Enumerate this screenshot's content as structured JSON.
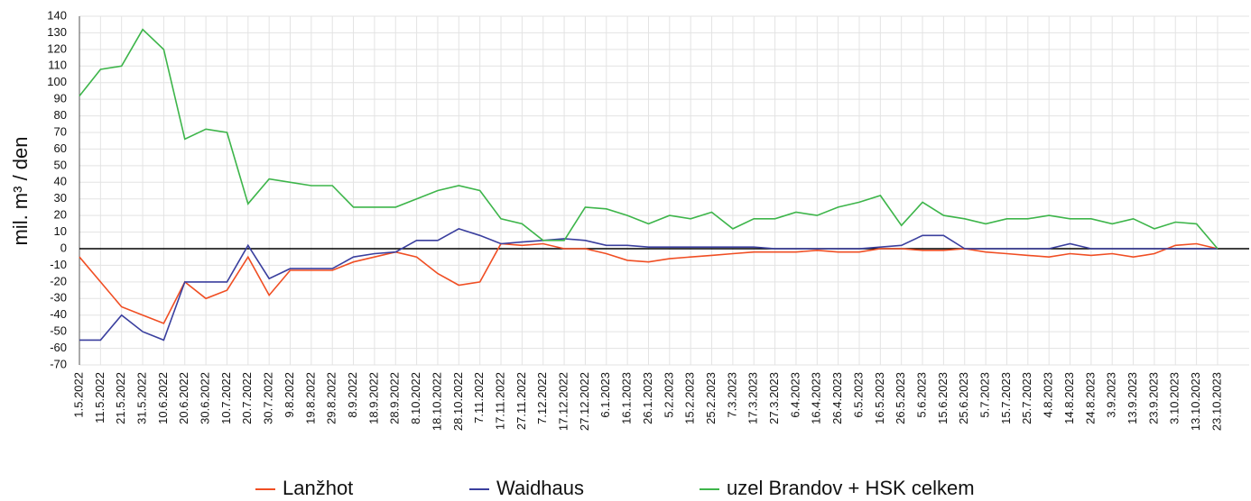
{
  "chart_data": {
    "type": "line",
    "y_label": "mil. m³ / den",
    "categories": [
      "1.5.2022",
      "11.5.2022",
      "21.5.2022",
      "31.5.2022",
      "10.6.2022",
      "20.6.2022",
      "30.6.2022",
      "10.7.2022",
      "20.7.2022",
      "30.7.2022",
      "9.8.2022",
      "19.8.2022",
      "29.8.2022",
      "8.9.2022",
      "18.9.2022",
      "28.9.2022",
      "8.10.2022",
      "18.10.2022",
      "28.10.2022",
      "7.11.2022",
      "17.11.2022",
      "27.11.2022",
      "7.12.2022",
      "17.12.2022",
      "27.12.2022",
      "6.1.2023",
      "16.1.2023",
      "26.1.2023",
      "5.2.2023",
      "15.2.2023",
      "25.2.2023",
      "7.3.2023",
      "17.3.2023",
      "27.3.2023",
      "6.4.2023",
      "16.4.2023",
      "26.4.2023",
      "6.5.2023",
      "16.5.2023",
      "26.5.2023",
      "5.6.2023",
      "15.6.2023",
      "25.6.2023",
      "5.7.2023",
      "15.7.2023",
      "25.7.2023",
      "4.8.2023",
      "14.8.2023",
      "24.8.2023",
      "3.9.2023",
      "13.9.2023",
      "23.9.2023",
      "3.10.2023",
      "13.10.2023",
      "23.10.2023"
    ],
    "series": [
      {
        "name": "Lanžhot",
        "color": "#f04e23",
        "values": [
          -5,
          -20,
          -35,
          -40,
          -45,
          -20,
          -30,
          -25,
          -5,
          -28,
          -13,
          -13,
          -13,
          -8,
          -5,
          -2,
          -5,
          -15,
          -22,
          -20,
          3,
          2,
          3,
          0,
          0,
          -3,
          -7,
          -8,
          -6,
          -5,
          -4,
          -3,
          -2,
          -2,
          -2,
          -1,
          -2,
          -2,
          0,
          0,
          -1,
          -1,
          0,
          -2,
          -3,
          -4,
          -5,
          -3,
          -4,
          -3,
          -5,
          -3,
          2,
          3,
          0
        ]
      },
      {
        "name": "Waidhaus",
        "color": "#3a3f9e",
        "values": [
          -55,
          -55,
          -40,
          -50,
          -55,
          -20,
          -20,
          -20,
          2,
          -18,
          -12,
          -12,
          -12,
          -5,
          -3,
          -2,
          5,
          5,
          12,
          8,
          3,
          4,
          5,
          6,
          5,
          2,
          2,
          1,
          1,
          1,
          1,
          1,
          1,
          0,
          0,
          0,
          0,
          0,
          1,
          2,
          8,
          8,
          0,
          0,
          0,
          0,
          0,
          3,
          0,
          0,
          0,
          0,
          0,
          0,
          0
        ]
      },
      {
        "name": "uzel Brandov + HSK celkem",
        "color": "#3db54a",
        "values": [
          92,
          108,
          110,
          132,
          120,
          66,
          72,
          70,
          27,
          42,
          40,
          38,
          38,
          25,
          25,
          25,
          30,
          35,
          38,
          35,
          18,
          15,
          5,
          5,
          25,
          24,
          20,
          15,
          20,
          18,
          22,
          12,
          18,
          18,
          22,
          20,
          25,
          28,
          32,
          14,
          28,
          20,
          18,
          15,
          18,
          18,
          20,
          18,
          18,
          15,
          18,
          12,
          16,
          15,
          0
        ]
      }
    ],
    "ylim": [
      -70,
      140
    ],
    "yticks": [
      -70,
      -60,
      -50,
      -40,
      -30,
      -20,
      -10,
      0,
      10,
      20,
      30,
      40,
      50,
      60,
      70,
      80,
      90,
      100,
      110,
      120,
      130,
      140
    ],
    "grid": true
  }
}
